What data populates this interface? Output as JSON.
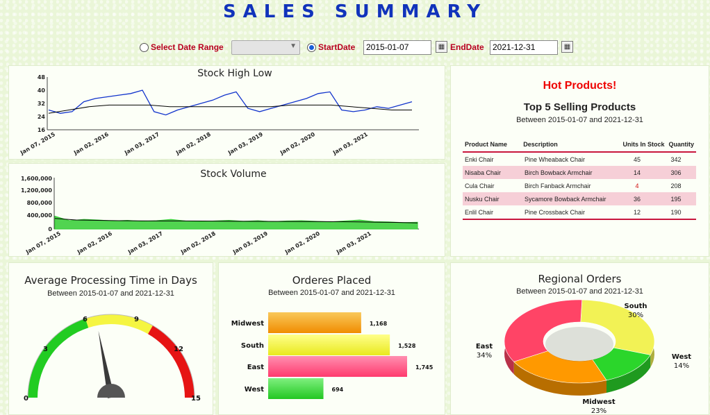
{
  "header": {
    "title": "SALES SUMMARY"
  },
  "filters": {
    "range_label": "Select Date Range",
    "range_value": "",
    "start_label": "StartDate",
    "start_value": "2015-01-07",
    "end_label": "EndDate",
    "end_value": "2021-12-31"
  },
  "stock_hl": {
    "title": "Stock High Low",
    "y_ticks": [
      "48",
      "40",
      "32",
      "24",
      "16"
    ],
    "x_ticks": [
      "Jan 07, 2015",
      "Jan 02, 2016",
      "Jan 03, 2017",
      "Jan 02, 2018",
      "Jan 03, 2019",
      "Jan 02, 2020",
      "Jan 03, 2021"
    ]
  },
  "stock_vol": {
    "title": "Stock Volume",
    "y_ticks": [
      "1,600,000",
      "1,200,000",
      "800,000",
      "400,000",
      "0"
    ],
    "x_ticks": [
      "Jan 07, 2015",
      "Jan 02, 2016",
      "Jan 03, 2017",
      "Jan 02, 2018",
      "Jan 03, 2019",
      "Jan 02, 2020",
      "Jan 03, 2021"
    ]
  },
  "hot_products": {
    "heading": "Hot Products!",
    "title": "Top 5 Selling Products",
    "subtitle": "Between 2015-01-07 and 2021-12-31",
    "columns": [
      "Product Name",
      "Description",
      "Units In Stock",
      "Quantity"
    ],
    "rows": [
      [
        "Enki Chair",
        "Pine Wheaback Chair",
        "45",
        "342"
      ],
      [
        "Nisaba Chair",
        "Birch Bowback Armchair",
        "14",
        "306"
      ],
      [
        "Cula Chair",
        "Birch Fanback Armchair",
        "4",
        "208"
      ],
      [
        "Nusku Chair",
        "Sycamore Bowback Armchair",
        "36",
        "195"
      ],
      [
        "Enlil Chair",
        "Pine Crossback Chair",
        "12",
        "190"
      ]
    ],
    "low_stock_color": "#d01010"
  },
  "gauge": {
    "title": "Average Processing Time in Days",
    "subtitle": "Between 2015-01-07 and 2021-12-31",
    "ticks": [
      "0",
      "3",
      "6",
      "9",
      "12",
      "15"
    ],
    "min": 0,
    "max": 15,
    "value": 6.6,
    "bands": [
      {
        "from": 0,
        "to": 6,
        "color": "#22cc22"
      },
      {
        "from": 6,
        "to": 10,
        "color": "#f5f542"
      },
      {
        "from": 10,
        "to": 15,
        "color": "#e61414"
      }
    ]
  },
  "orders": {
    "title": "Orderes Placed",
    "subtitle": "Between 2015-01-07 and 2021-12-31",
    "value_labels": [
      "1,168",
      "1,528",
      "1,745",
      "694"
    ]
  },
  "regional": {
    "title": "Regional Orders",
    "subtitle": "Between 2015-01-07 and 2021-12-31",
    "value_labels": [
      "30%",
      "14%",
      "23%",
      "34%"
    ]
  },
  "chart_data": [
    {
      "type": "bar",
      "title": "Orderes Placed",
      "subtitle": "Between 2015-01-07 and 2021-12-31",
      "orientation": "horizontal",
      "categories": [
        "Midwest",
        "South",
        "East",
        "West"
      ],
      "values": [
        1168,
        1528,
        1745,
        694
      ],
      "colors": [
        "#f5a011",
        "#f2f233",
        "#ff4f80",
        "#3fdc3f"
      ]
    },
    {
      "type": "pie",
      "title": "Regional Orders",
      "subtitle": "Between 2015-01-07 and 2021-12-31",
      "style": "3d-donut",
      "categories": [
        "South",
        "West",
        "Midwest",
        "East"
      ],
      "values": [
        30,
        14,
        23,
        34
      ],
      "colors": [
        "#f2f255",
        "#2bd62b",
        "#ff9900",
        "#ff4466"
      ]
    },
    {
      "type": "line",
      "title": "Stock High Low",
      "x_tick_labels": [
        "Jan 07, 2015",
        "Jan 02, 2016",
        "Jan 03, 2017",
        "Jan 02, 2018",
        "Jan 03, 2019",
        "Jan 02, 2020",
        "Jan 03, 2021"
      ],
      "ylim": [
        16,
        48
      ],
      "y_ticks": [
        16,
        24,
        32,
        40,
        48
      ],
      "series": [
        {
          "values": [
            28,
            26,
            27,
            33,
            35,
            36,
            37,
            38,
            40,
            27,
            25,
            28,
            30,
            32,
            34,
            37,
            39,
            29,
            27,
            29,
            31,
            33,
            35,
            38,
            39,
            28,
            27,
            28,
            30,
            29,
            31,
            33
          ]
        },
        {
          "values": [
            26,
            28,
            30,
            31,
            31,
            31,
            30,
            30,
            30,
            30,
            30,
            30,
            31,
            31,
            31,
            30,
            29,
            28,
            28
          ]
        }
      ],
      "colors": [
        "#1133cc",
        "#000000"
      ]
    },
    {
      "type": "area",
      "title": "Stock Volume",
      "x_tick_labels": [
        "Jan 07, 2015",
        "Jan 02, 2016",
        "Jan 03, 2017",
        "Jan 02, 2018",
        "Jan 03, 2019",
        "Jan 02, 2020",
        "Jan 03, 2021"
      ],
      "ylim": [
        0,
        1600000
      ],
      "y_ticks": [
        0,
        400000,
        800000,
        1200000,
        1600000
      ],
      "series": [
        {
          "values": [
            400000,
            260000,
            300000,
            280000,
            250000,
            270000,
            240000,
            260000,
            300000,
            250000,
            230000,
            250000,
            270000,
            240000,
            260000,
            230000,
            250000,
            260000,
            240000,
            220000,
            250000,
            280000,
            230000,
            220000,
            200000,
            210000
          ]
        },
        {
          "values": [
            330000,
            280000,
            270000,
            260000,
            255000,
            250000,
            250000,
            248000,
            245000,
            240000,
            238000,
            236000,
            233000,
            230000,
            225000,
            215000,
            205000,
            190000
          ]
        }
      ],
      "colors": [
        "#33cc33",
        "#000000"
      ]
    }
  ]
}
